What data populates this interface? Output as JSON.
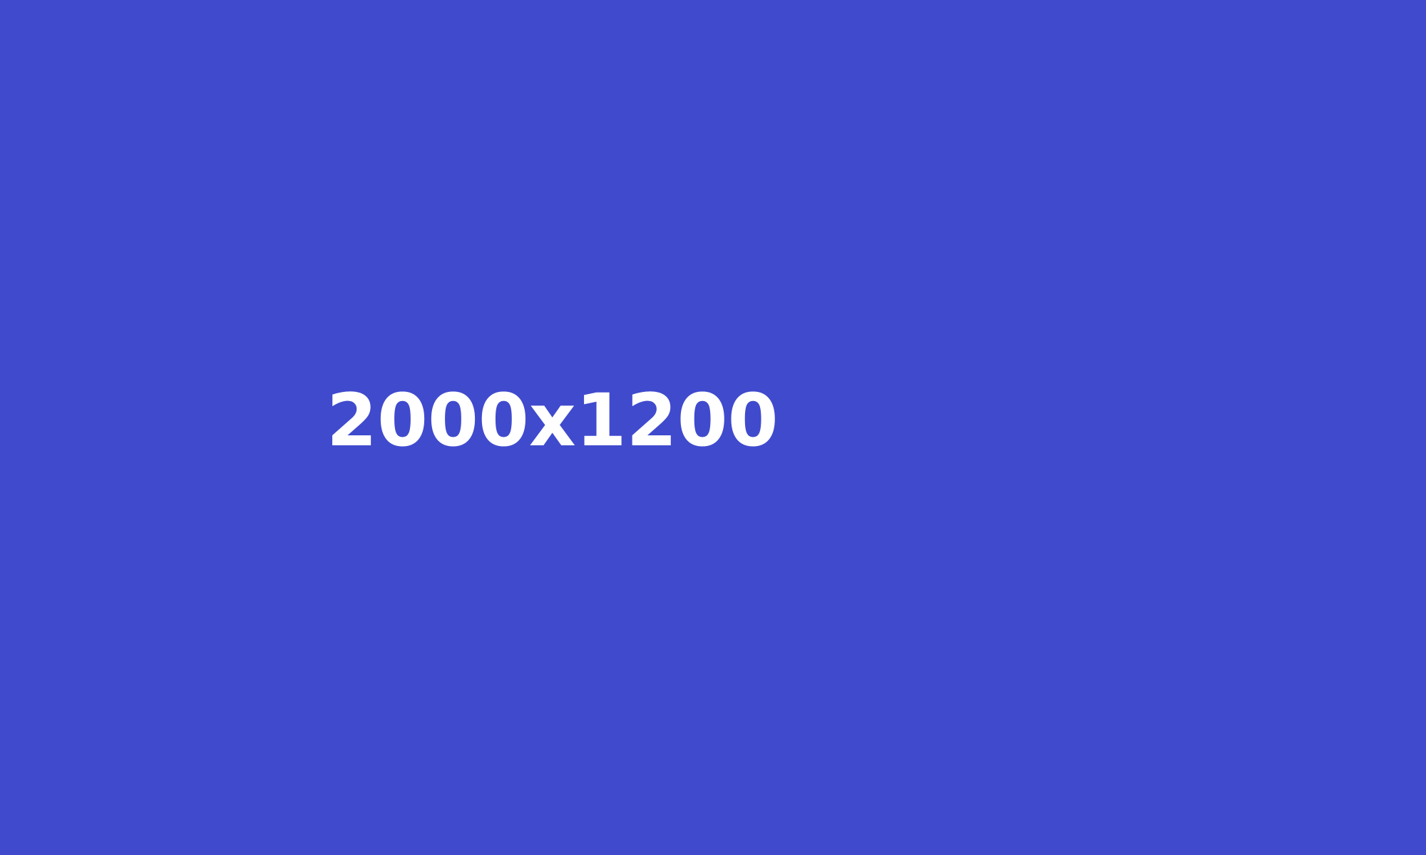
{
  "placeholder": {
    "background_color": "#3f4acd",
    "text_color": "#ffffff",
    "label": "2000x1200"
  }
}
